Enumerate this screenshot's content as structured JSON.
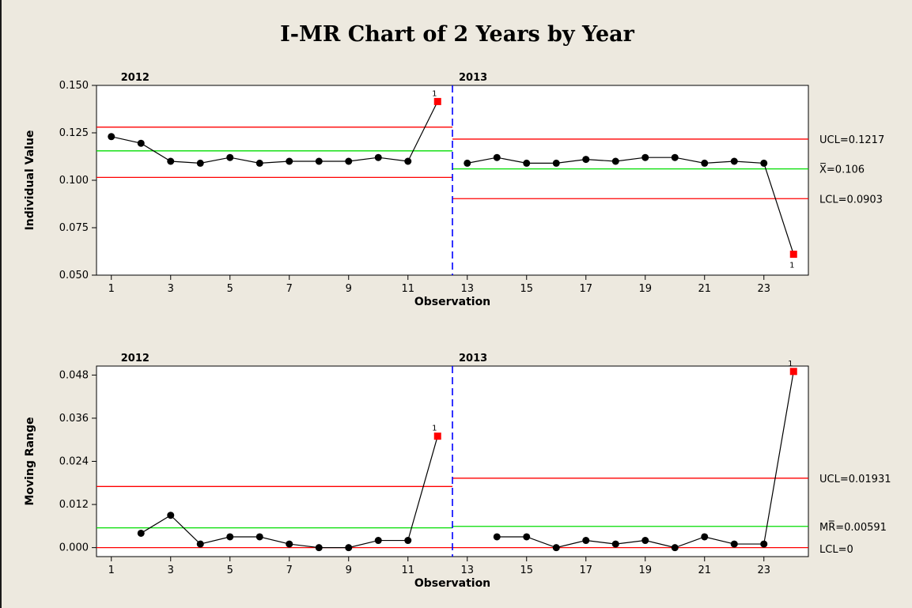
{
  "title": "I-MR Chart of 2 Years by Year",
  "colors": {
    "background": "#ede9df",
    "plot_background": "#ffffff",
    "control_limit": "#ff0000",
    "center_line": "#00dd00",
    "stage_divider": "#0000ff",
    "data_point": "#000000",
    "out_of_control": "#ff0000"
  },
  "chart_data": [
    {
      "type": "line",
      "name": "individual-chart",
      "xlabel": "Observation",
      "ylabel": "Individual Value",
      "x": [
        1,
        2,
        3,
        4,
        5,
        6,
        7,
        8,
        9,
        10,
        11,
        12,
        13,
        14,
        15,
        16,
        17,
        18,
        19,
        20,
        21,
        22,
        23,
        24
      ],
      "y": [
        0.123,
        0.1195,
        0.11,
        0.109,
        0.112,
        0.109,
        0.11,
        0.11,
        0.11,
        0.112,
        0.11,
        0.1415,
        0.109,
        0.112,
        0.109,
        0.109,
        0.111,
        0.11,
        0.112,
        0.112,
        0.109,
        0.11,
        0.109,
        0.061
      ],
      "xlim": [
        0.5,
        24.5
      ],
      "ylim": [
        0.05,
        0.15
      ],
      "x_ticks": [
        1,
        3,
        5,
        7,
        9,
        11,
        13,
        15,
        17,
        19,
        21,
        23
      ],
      "y_ticks": [
        0.05,
        0.075,
        0.1,
        0.125,
        0.15
      ],
      "y_tick_labels": [
        "0.050",
        "0.075",
        "0.100",
        "0.125",
        "0.150"
      ],
      "grid": false,
      "stages": [
        {
          "label": "2012",
          "x_start": 1,
          "x_end": 12,
          "ucl": 0.128,
          "center": 0.1155,
          "lcl": 0.1015
        },
        {
          "label": "2013",
          "x_start": 13,
          "x_end": 24,
          "ucl": 0.1217,
          "center": 0.106,
          "lcl": 0.0903
        }
      ],
      "stage_divider_x": 12.5,
      "out_of_control": [
        12,
        24
      ],
      "flag_label": "1",
      "limit_labels": {
        "ucl": "UCL=0.1217",
        "center": "X̅=0.106",
        "lcl": "LCL=0.0903"
      }
    },
    {
      "type": "line",
      "name": "moving-range-chart",
      "xlabel": "Observation",
      "ylabel": "Moving Range",
      "x": [
        2,
        3,
        4,
        5,
        6,
        7,
        8,
        9,
        10,
        11,
        12,
        14,
        15,
        16,
        17,
        18,
        19,
        20,
        21,
        22,
        23,
        24
      ],
      "y": [
        0.004,
        0.009,
        0.001,
        0.003,
        0.003,
        0.001,
        0.0,
        0.0,
        0.002,
        0.002,
        0.031,
        0.003,
        0.003,
        0.0,
        0.002,
        0.001,
        0.002,
        0.0,
        0.003,
        0.001,
        0.001,
        0.049
      ],
      "xlim": [
        0.5,
        24.5
      ],
      "ylim": [
        -0.0025,
        0.0505
      ],
      "x_ticks": [
        1,
        3,
        5,
        7,
        9,
        11,
        13,
        15,
        17,
        19,
        21,
        23
      ],
      "y_ticks": [
        0,
        0.012,
        0.024,
        0.036,
        0.048
      ],
      "y_tick_labels": [
        "0.000",
        "0.012",
        "0.024",
        "0.036",
        "0.048"
      ],
      "grid": false,
      "stages": [
        {
          "label": "2012",
          "x_start": 1,
          "x_end": 12,
          "ucl": 0.017,
          "center": 0.0055,
          "lcl": 0
        },
        {
          "label": "2013",
          "x_start": 13,
          "x_end": 24,
          "ucl": 0.01931,
          "center": 0.00591,
          "lcl": 0
        }
      ],
      "stage_divider_x": 12.5,
      "out_of_control": [
        12,
        24
      ],
      "flag_label": "1",
      "limit_labels": {
        "ucl": "UCL=0.01931",
        "center": "MR̅̅=0.00591",
        "lcl": "LCL=0"
      }
    }
  ]
}
